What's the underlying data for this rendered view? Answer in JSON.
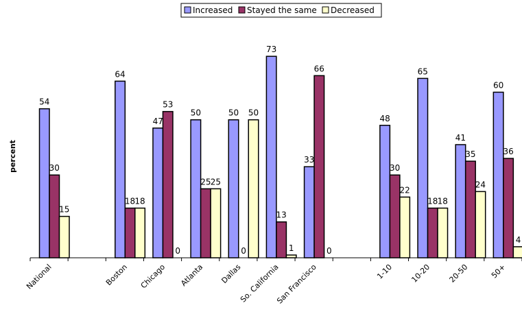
{
  "chart_data": {
    "type": "bar",
    "title": "",
    "xlabel": "",
    "ylabel": "percent",
    "ylim": [
      0,
      79
    ],
    "legend_position": "top-center",
    "grid": false,
    "categories": [
      "National",
      "",
      "Boston",
      "Chicago",
      "Atlanta",
      "Dallas",
      "So. California",
      "San Francisco",
      "",
      "1-10",
      "10-20",
      "20-50",
      "50+"
    ],
    "series": [
      {
        "name": "Increased",
        "color": "#9999ff",
        "values": [
          54,
          null,
          64,
          47,
          50,
          50,
          73,
          33,
          null,
          48,
          65,
          41,
          60
        ]
      },
      {
        "name": "Stayed the same",
        "color": "#993366",
        "values": [
          30,
          null,
          18,
          53,
          25,
          0,
          13,
          66,
          null,
          30,
          18,
          35,
          36
        ]
      },
      {
        "name": "Decreased",
        "color": "#ffffcc",
        "values": [
          15,
          null,
          18,
          0,
          25,
          50,
          1,
          0,
          null,
          22,
          18,
          24,
          4
        ]
      }
    ]
  }
}
